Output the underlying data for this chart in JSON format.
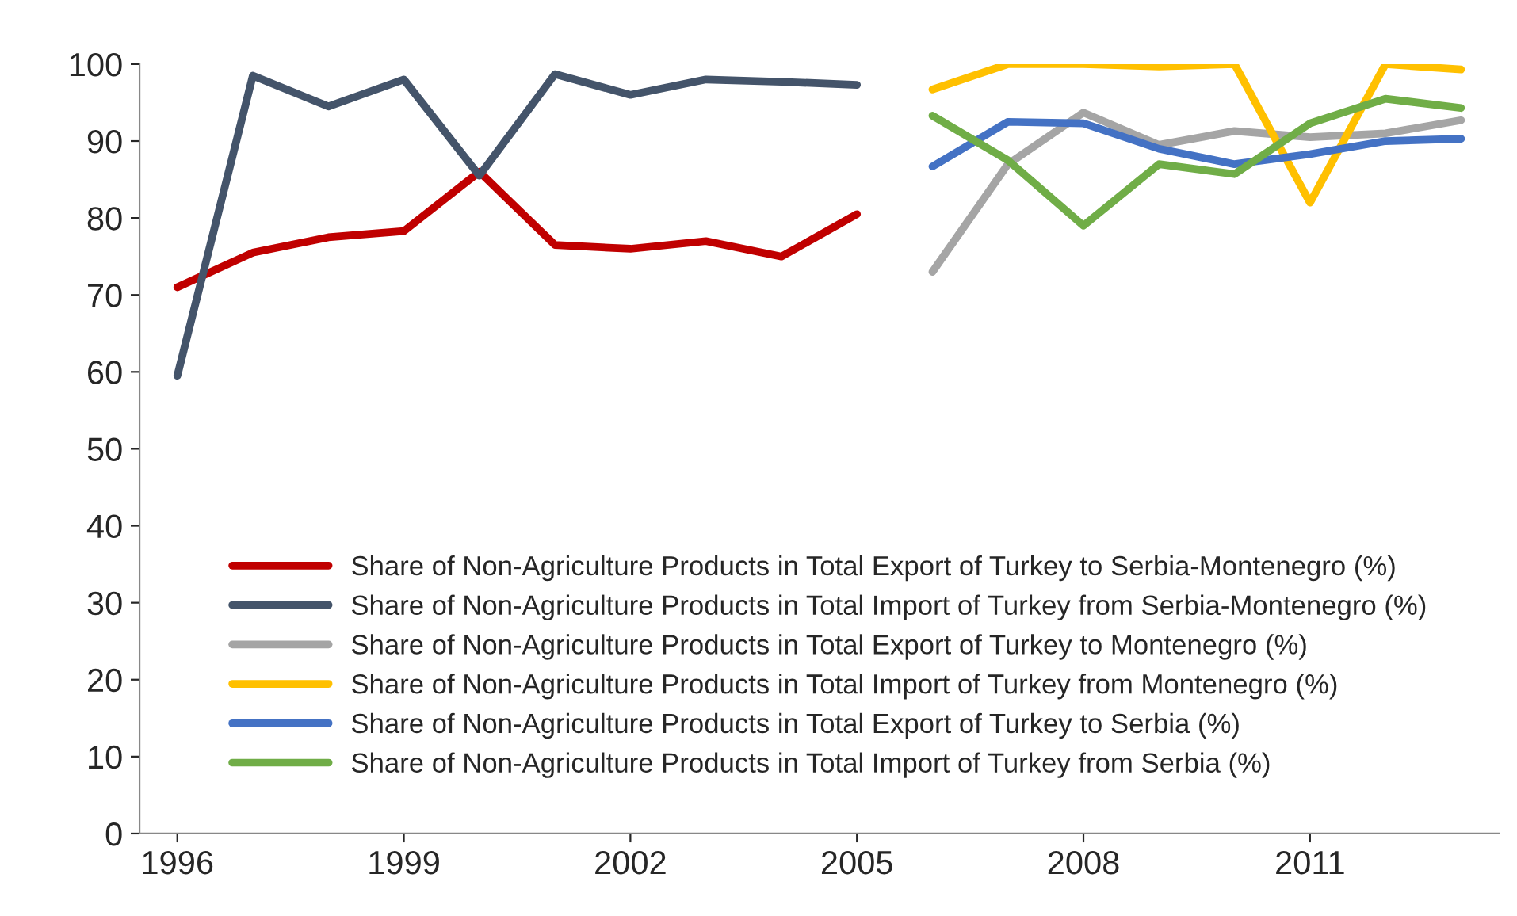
{
  "chart_data": {
    "type": "line",
    "categories": [
      "1996",
      null,
      null,
      "1999",
      null,
      null,
      "2002",
      null,
      null,
      "2005",
      null,
      null,
      "2008",
      null,
      null,
      "2011",
      null,
      null
    ],
    "series": [
      {
        "name": "Share of Non-Agriculture Products in Total Export of Turkey to Serbia-Montenegro (%)",
        "color": "#c00000",
        "values": [
          71,
          75.5,
          77.5,
          78.3,
          86,
          76.5,
          76,
          77,
          75,
          80.5,
          null,
          null,
          null,
          null,
          null,
          null,
          null,
          null
        ]
      },
      {
        "name": "Share of Non-Agriculture Products in Total Import of Turkey from Serbia-Montenegro (%)",
        "color": "#44546a",
        "values": [
          59.5,
          98.5,
          94.5,
          98,
          85.5,
          98.7,
          96,
          98,
          97.7,
          97.3,
          null,
          null,
          null,
          null,
          null,
          null,
          null,
          null
        ]
      },
      {
        "name": "Share of Non-Agriculture Products in Total Export of Turkey to Montenegro (%)",
        "color": "#a5a5a5",
        "values": [
          null,
          null,
          null,
          null,
          null,
          null,
          null,
          null,
          null,
          null,
          73,
          87,
          93.7,
          89.5,
          91.3,
          90.5,
          91,
          92.7
        ]
      },
      {
        "name": "Share of Non-Agriculture Products in Total Import of Turkey from Montenegro (%)",
        "color": "#ffc000",
        "values": [
          null,
          null,
          null,
          null,
          null,
          null,
          null,
          null,
          null,
          null,
          96.7,
          100,
          100,
          99.7,
          100,
          82,
          100,
          99.3
        ]
      },
      {
        "name": "Share of Non-Agriculture Products in Total Export of Turkey to Serbia (%)",
        "color": "#4472c4",
        "values": [
          null,
          null,
          null,
          null,
          null,
          null,
          null,
          null,
          null,
          null,
          86.7,
          92.5,
          92.3,
          89,
          87,
          88.3,
          90,
          90.3
        ]
      },
      {
        "name": "Share of Non-Agriculture Products in Total Import of Turkey from Serbia (%)",
        "color": "#70ad47",
        "values": [
          null,
          null,
          null,
          null,
          null,
          null,
          null,
          null,
          null,
          null,
          93.3,
          87.5,
          79,
          87,
          85.7,
          92.3,
          95.5,
          94.3
        ]
      }
    ],
    "ylim": [
      0,
      100
    ],
    "yticks": [
      0,
      10,
      20,
      30,
      40,
      50,
      60,
      70,
      80,
      90,
      100
    ],
    "grid": false,
    "legend": "bottom left",
    "marker": "none",
    "line_style": "solid"
  }
}
